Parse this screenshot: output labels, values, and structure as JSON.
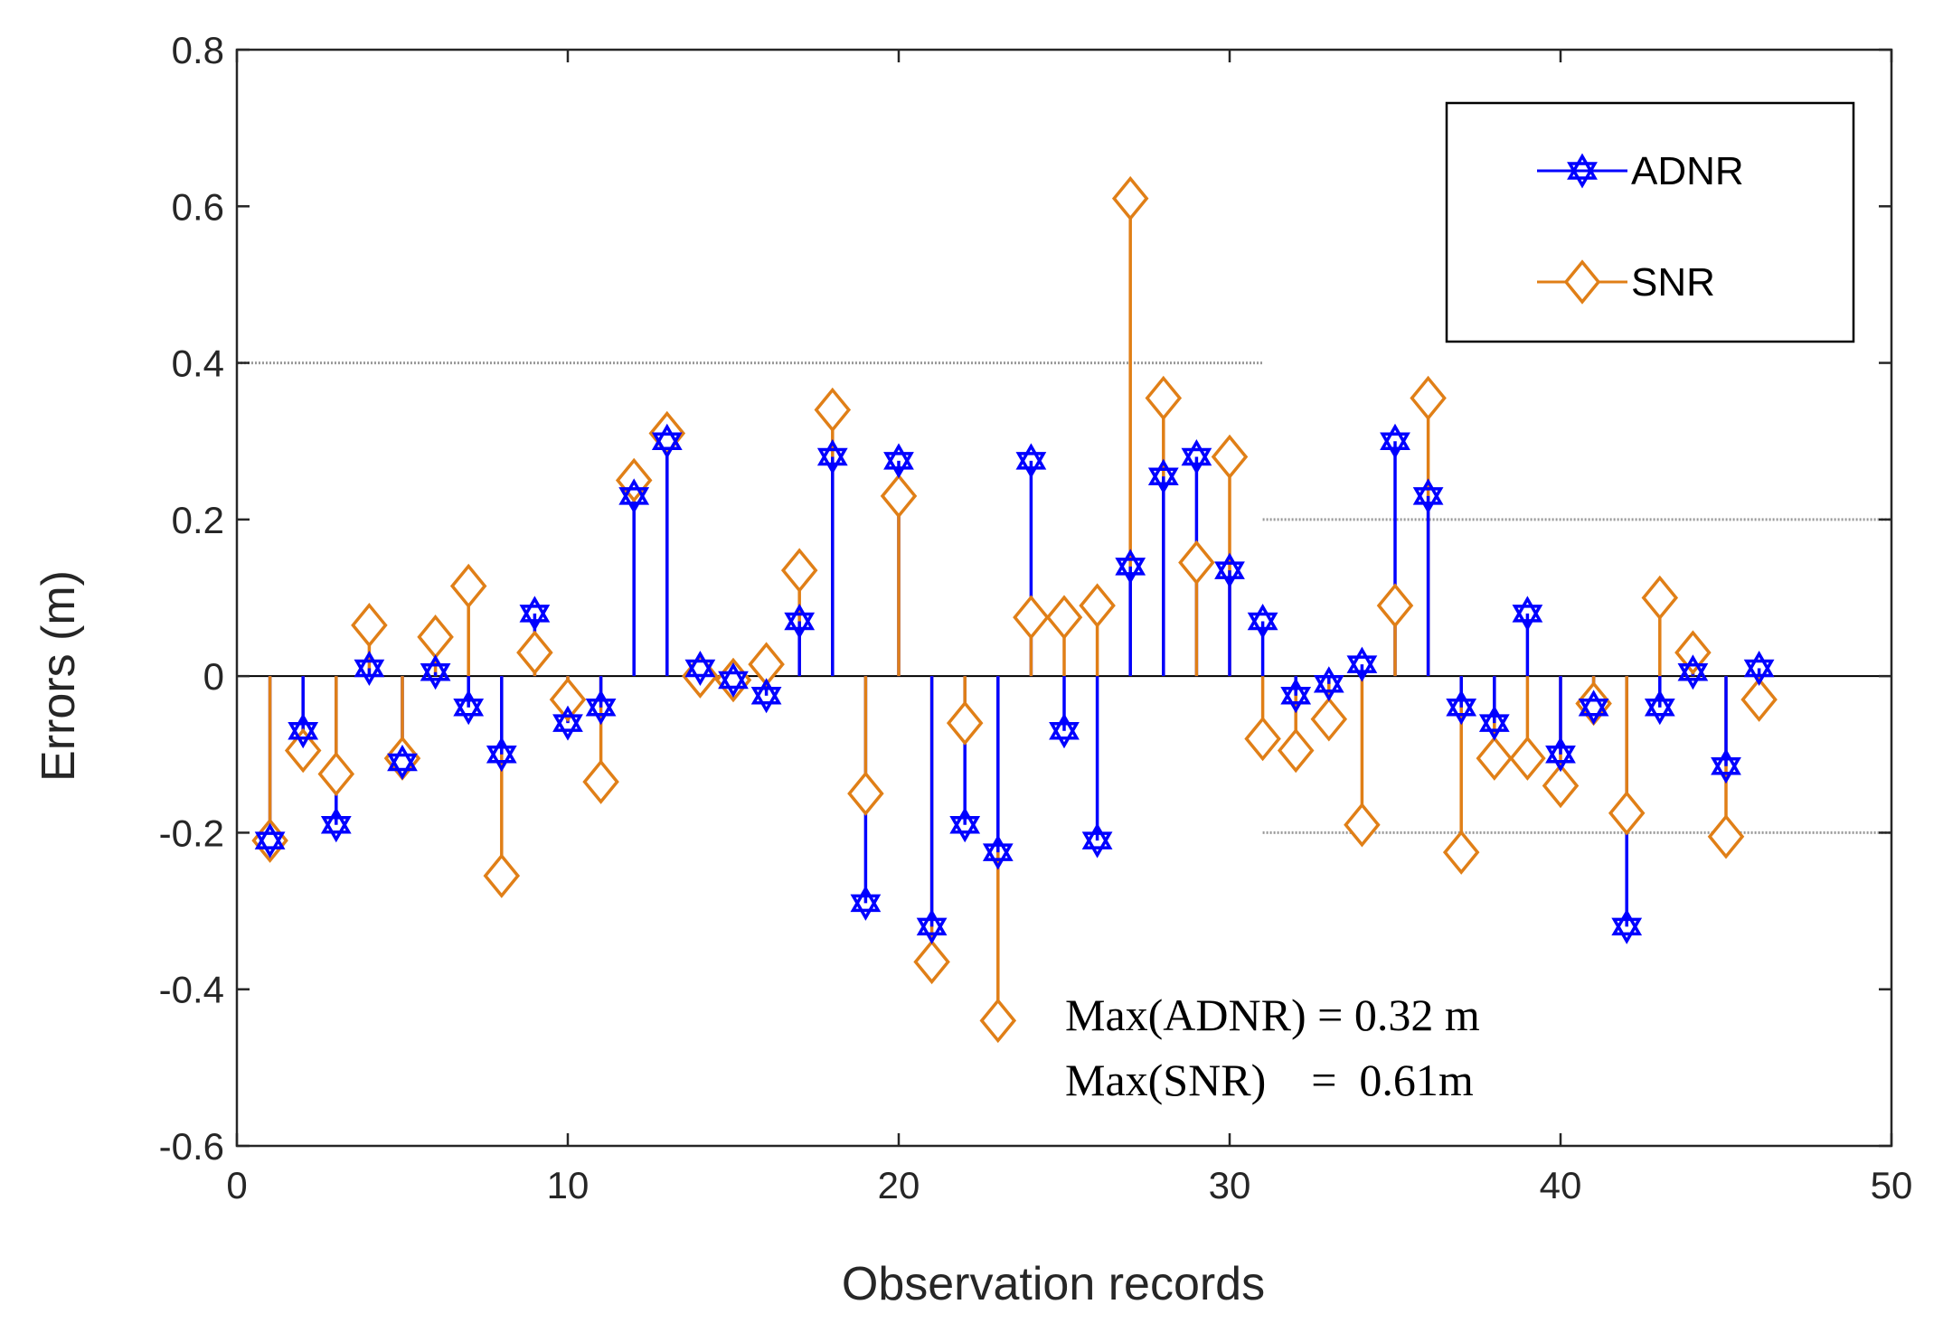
{
  "chart_data": {
    "type": "stem",
    "xlabel": "Observation records",
    "ylabel": "Errors (m)",
    "xlim": [
      0,
      50
    ],
    "ylim": [
      -0.6,
      0.8
    ],
    "xticks": [
      0,
      10,
      20,
      30,
      40,
      50
    ],
    "yticks": [
      -0.6,
      -0.4,
      -0.2,
      0,
      0.2,
      0.4,
      0.6,
      0.8
    ],
    "x": [
      1,
      2,
      3,
      4,
      5,
      6,
      7,
      8,
      9,
      10,
      11,
      12,
      13,
      14,
      15,
      16,
      17,
      18,
      19,
      20,
      21,
      22,
      23,
      24,
      25,
      26,
      27,
      28,
      29,
      30,
      31,
      32,
      33,
      34,
      35,
      36,
      37,
      38,
      39,
      40,
      41,
      42,
      43,
      44,
      45,
      46
    ],
    "series": [
      {
        "name": "ADNR",
        "color": "#0000ff",
        "marker": "hexagram",
        "values": [
          -0.21,
          -0.07,
          -0.19,
          0.01,
          -0.11,
          0.005,
          -0.04,
          -0.1,
          0.08,
          -0.06,
          -0.04,
          0.23,
          0.3,
          0.01,
          -0.005,
          -0.025,
          0.07,
          0.28,
          -0.29,
          0.275,
          -0.32,
          -0.19,
          -0.225,
          0.275,
          -0.07,
          -0.21,
          0.14,
          0.255,
          0.28,
          0.135,
          0.07,
          -0.025,
          -0.01,
          0.015,
          0.3,
          0.23,
          -0.04,
          -0.06,
          0.08,
          -0.1,
          -0.04,
          -0.32,
          -0.04,
          0.005,
          -0.115,
          0.01
        ]
      },
      {
        "name": "SNR",
        "color": "#e07f17",
        "marker": "diamond",
        "values": [
          -0.21,
          -0.095,
          -0.125,
          0.065,
          -0.105,
          0.05,
          0.115,
          -0.255,
          0.03,
          -0.03,
          -0.135,
          0.25,
          0.31,
          0.0,
          -0.005,
          0.015,
          0.135,
          0.34,
          -0.15,
          0.23,
          -0.365,
          -0.06,
          -0.44,
          0.075,
          0.075,
          0.09,
          0.61,
          0.355,
          0.145,
          0.28,
          -0.08,
          -0.095,
          -0.055,
          -0.19,
          0.09,
          0.355,
          -0.225,
          -0.105,
          -0.105,
          -0.14,
          -0.035,
          -0.175,
          0.1,
          0.03,
          -0.205,
          -0.03
        ]
      }
    ],
    "reference_lines": [
      {
        "x_range": [
          0,
          31
        ],
        "y": 0.4
      },
      {
        "x_range": [
          31,
          50
        ],
        "y": 0.2
      },
      {
        "x_range": [
          31,
          50
        ],
        "y": -0.2
      }
    ],
    "annotations": [
      "Max(ADNR) = 0.32 m",
      "Max(SNR)    =  0.61m"
    ],
    "legend_position": "top-right"
  }
}
